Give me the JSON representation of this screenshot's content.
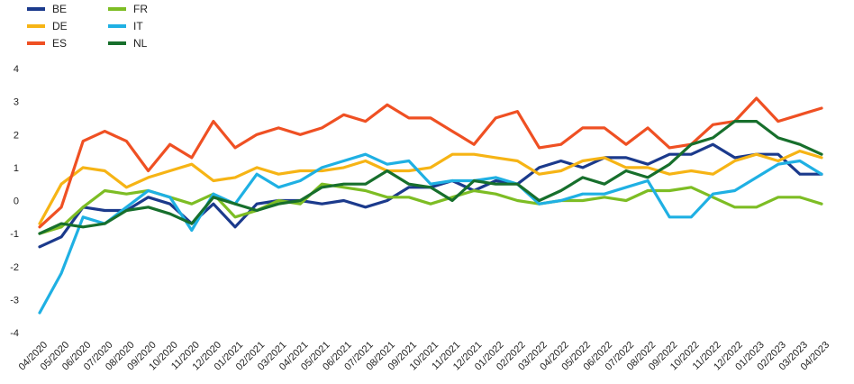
{
  "chart_data": {
    "type": "line",
    "title": "",
    "xlabel": "",
    "ylabel": "",
    "ylim": [
      -4,
      4
    ],
    "yticks": [
      -4,
      -3,
      -2,
      -1,
      0,
      1,
      2,
      3,
      4
    ],
    "grid": false,
    "legend_position": "top-left",
    "categories": [
      "04/2020",
      "05/2020",
      "06/2020",
      "07/2020",
      "08/2020",
      "09/2020",
      "10/2020",
      "11/2020",
      "12/2020",
      "01/2021",
      "02/2021",
      "03/2021",
      "04/2021",
      "05/2021",
      "06/2021",
      "07/2021",
      "08/2021",
      "09/2021",
      "10/2021",
      "11/2021",
      "12/2021",
      "01/2022",
      "02/2022",
      "03/2022",
      "04/2022",
      "05/2022",
      "06/2022",
      "07/2022",
      "08/2022",
      "09/2022",
      "10/2022",
      "11/2022",
      "12/2022",
      "01/2023",
      "02/2023",
      "03/2023",
      "04/2023"
    ],
    "series": [
      {
        "name": "BE",
        "color": "#1b3a8c",
        "values": [
          -1.4,
          -1.1,
          -0.2,
          -0.3,
          -0.3,
          0.1,
          -0.1,
          -0.7,
          -0.1,
          -0.8,
          -0.1,
          0.0,
          0.0,
          -0.1,
          0.0,
          -0.2,
          0.0,
          0.4,
          0.4,
          0.6,
          0.3,
          0.6,
          0.5,
          1.0,
          1.2,
          1.0,
          1.3,
          1.3,
          1.1,
          1.4,
          1.4,
          1.7,
          1.3,
          1.4,
          1.4,
          0.8,
          0.8
        ]
      },
      {
        "name": "DE",
        "color": "#f6b415",
        "values": [
          -0.7,
          0.5,
          1.0,
          0.9,
          0.4,
          0.7,
          0.9,
          1.1,
          0.6,
          0.7,
          1.0,
          0.8,
          0.9,
          0.9,
          1.0,
          1.2,
          0.9,
          0.9,
          1.0,
          1.4,
          1.4,
          1.3,
          1.2,
          0.8,
          0.9,
          1.2,
          1.3,
          1.0,
          1.0,
          0.8,
          0.9,
          0.8,
          1.2,
          1.4,
          1.2,
          1.5,
          1.3
        ]
      },
      {
        "name": "ES",
        "color": "#ef5023",
        "values": [
          -0.8,
          -0.2,
          1.8,
          2.1,
          1.8,
          0.9,
          1.7,
          1.3,
          2.4,
          1.6,
          2.0,
          2.2,
          2.0,
          2.2,
          2.6,
          2.4,
          2.9,
          2.5,
          2.5,
          2.1,
          1.7,
          2.5,
          2.7,
          1.6,
          1.7,
          2.2,
          2.2,
          1.7,
          2.2,
          1.6,
          1.7,
          2.3,
          2.4,
          3.1,
          2.4,
          2.6,
          2.8
        ]
      },
      {
        "name": "FR",
        "color": "#7dbd24",
        "values": [
          -1.0,
          -0.8,
          -0.2,
          0.3,
          0.2,
          0.3,
          0.1,
          -0.1,
          0.2,
          -0.5,
          -0.3,
          0.0,
          -0.1,
          0.5,
          0.4,
          0.3,
          0.1,
          0.1,
          -0.1,
          0.1,
          0.3,
          0.2,
          0.0,
          -0.1,
          0.0,
          0.0,
          0.1,
          0.0,
          0.3,
          0.3,
          0.4,
          0.1,
          -0.2,
          -0.2,
          0.1,
          0.1,
          -0.1
        ]
      },
      {
        "name": "IT",
        "color": "#1fb0e3",
        "values": [
          -3.4,
          -2.2,
          -0.5,
          -0.7,
          -0.2,
          0.3,
          0.1,
          -0.9,
          0.2,
          -0.1,
          0.8,
          0.4,
          0.6,
          1.0,
          1.2,
          1.4,
          1.1,
          1.2,
          0.5,
          0.6,
          0.6,
          0.7,
          0.5,
          -0.1,
          0.0,
          0.2,
          0.2,
          0.4,
          0.6,
          -0.5,
          -0.5,
          0.2,
          0.3,
          0.7,
          1.1,
          1.2,
          0.8
        ]
      },
      {
        "name": "NL",
        "color": "#176f2c",
        "values": [
          -1.0,
          -0.7,
          -0.8,
          -0.7,
          -0.3,
          -0.2,
          -0.4,
          -0.7,
          0.1,
          -0.1,
          -0.3,
          -0.1,
          0.0,
          0.4,
          0.5,
          0.5,
          0.9,
          0.5,
          0.4,
          0.0,
          0.6,
          0.5,
          0.5,
          0.0,
          0.3,
          0.7,
          0.5,
          0.9,
          0.7,
          1.1,
          1.7,
          1.9,
          2.4,
          2.4,
          1.9,
          1.7,
          1.4
        ]
      }
    ]
  }
}
